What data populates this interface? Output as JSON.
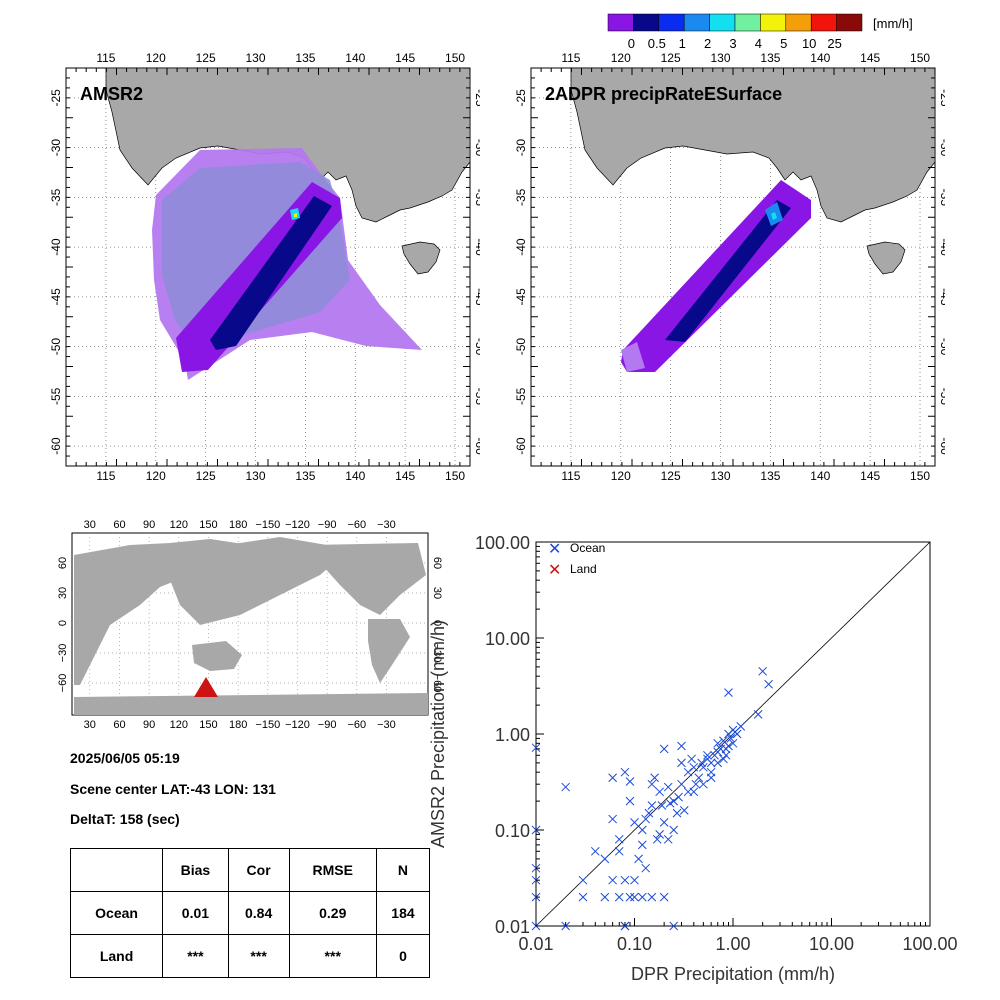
{
  "colorbar": {
    "unit": "[mm/h]",
    "labels": [
      "0",
      "0.5",
      "1",
      "2",
      "3",
      "4",
      "5",
      "10",
      "25"
    ],
    "colors": [
      "#8a16e6",
      "#07088a",
      "#0a2cf0",
      "#1a8af0",
      "#12e0f0",
      "#70f0a0",
      "#f2f20a",
      "#f49e0a",
      "#f0140a",
      "#8a0a0a"
    ]
  },
  "colors": {
    "land": "#a8a8a8",
    "ocean_marker": "#1a4ad8",
    "land_marker": "#c81414",
    "swath_light": "#b478f0",
    "swath_grey": "#8c8cd8",
    "triangle": "#cc1414"
  },
  "map_left": {
    "title": "AMSR2",
    "lon_ticks": [
      "115",
      "120",
      "125",
      "130",
      "135",
      "140",
      "145",
      "150"
    ],
    "lat_ticks": [
      "-25",
      "-30",
      "-35",
      "-40",
      "-45",
      "-50",
      "-55",
      "-60"
    ]
  },
  "map_right": {
    "title": "2ADPR precipRateESurface",
    "lon_ticks": [
      "115",
      "120",
      "125",
      "130",
      "135",
      "140",
      "145",
      "150"
    ],
    "lat_ticks": [
      "-25",
      "-30",
      "-35",
      "-40",
      "-45",
      "-50",
      "-55",
      "-60"
    ]
  },
  "world_map": {
    "lon_ticks": [
      "30",
      "60",
      "90",
      "120",
      "150",
      "180",
      "−150",
      "−120",
      "−90",
      "−60",
      "−30"
    ],
    "lat_ticks": [
      "60",
      "30",
      "0",
      "−30",
      "−60"
    ]
  },
  "info": {
    "datetime": "2025/06/05 05:19",
    "scene_center": "Scene center LAT:-43   LON: 131",
    "delta_t": "DeltaT:  158 (sec)"
  },
  "stats_table": {
    "headers": [
      "",
      "Bias",
      "Cor",
      "RMSE",
      "N"
    ],
    "rows": [
      [
        "Ocean",
        "0.01",
        "0.84",
        "0.29",
        "184"
      ],
      [
        "Land",
        "***",
        "***",
        "***",
        "0"
      ]
    ]
  },
  "chart_data": {
    "type": "scatter",
    "xlabel": "DPR Precipitation (mm/h)",
    "ylabel": "AMSR2 Precipitation (mm/h)",
    "xscale": "log",
    "yscale": "log",
    "xlim": [
      0.01,
      100
    ],
    "ylim": [
      0.01,
      100
    ],
    "x_ticks": [
      "0.01",
      "0.10",
      "1.00",
      "10.00",
      "100.00"
    ],
    "y_ticks": [
      "0.01",
      "0.10",
      "1.00",
      "10.00",
      "100.00"
    ],
    "legend": [
      "Ocean",
      "Land"
    ],
    "legend_position": "top-left",
    "reference_line": "1:1",
    "series": [
      {
        "name": "Ocean",
        "x": [
          0.01,
          0.01,
          0.01,
          0.01,
          0.01,
          0.01,
          0.02,
          0.02,
          0.03,
          0.03,
          0.04,
          0.05,
          0.05,
          0.06,
          0.06,
          0.07,
          0.07,
          0.08,
          0.08,
          0.08,
          0.09,
          0.09,
          0.1,
          0.1,
          0.1,
          0.11,
          0.12,
          0.12,
          0.13,
          0.13,
          0.14,
          0.15,
          0.15,
          0.16,
          0.17,
          0.18,
          0.19,
          0.2,
          0.2,
          0.22,
          0.23,
          0.25,
          0.25,
          0.27,
          0.28,
          0.3,
          0.3,
          0.32,
          0.35,
          0.35,
          0.38,
          0.4,
          0.42,
          0.45,
          0.48,
          0.5,
          0.55,
          0.55,
          0.6,
          0.6,
          0.65,
          0.7,
          0.7,
          0.75,
          0.8,
          0.8,
          0.85,
          0.9,
          0.9,
          1.0,
          1.0,
          1.1,
          1.2,
          1.8,
          2.0,
          2.3,
          0.3,
          0.25,
          0.12,
          0.08,
          0.09,
          0.06,
          0.07,
          0.2,
          0.15,
          0.18,
          0.22,
          0.4,
          0.5,
          0.6,
          0.7,
          0.9,
          0.95,
          1.05,
          0.85
        ],
        "y": [
          0.72,
          0.1,
          0.04,
          0.03,
          0.02,
          0.01,
          0.28,
          0.01,
          0.03,
          0.02,
          0.06,
          0.05,
          0.02,
          0.35,
          0.03,
          0.08,
          0.02,
          0.4,
          0.03,
          0.01,
          0.32,
          0.02,
          0.03,
          0.12,
          0.02,
          0.05,
          0.1,
          0.02,
          0.13,
          0.04,
          0.15,
          0.18,
          0.02,
          0.35,
          0.08,
          0.25,
          0.18,
          0.12,
          0.02,
          0.28,
          0.19,
          0.2,
          0.01,
          0.15,
          0.22,
          0.3,
          0.5,
          0.16,
          0.4,
          0.25,
          0.55,
          0.45,
          0.3,
          0.35,
          0.5,
          0.45,
          0.55,
          0.6,
          0.5,
          0.35,
          0.6,
          0.5,
          0.8,
          0.7,
          0.85,
          0.55,
          0.7,
          1.0,
          2.7,
          0.8,
          1.1,
          1.0,
          1.2,
          1.6,
          4.5,
          3.3,
          0.75,
          0.1,
          0.07,
          0.01,
          0.2,
          0.13,
          0.06,
          0.7,
          0.3,
          0.09,
          0.08,
          0.25,
          0.3,
          0.4,
          0.65,
          0.75,
          0.9,
          1.05,
          0.6
        ]
      },
      {
        "name": "Land",
        "x": [],
        "y": []
      }
    ]
  }
}
